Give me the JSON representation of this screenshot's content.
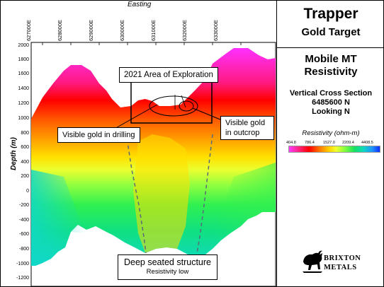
{
  "axes": {
    "x_title": "Easting",
    "y_title": "Depth (m)",
    "x_ticks": [
      "627000E",
      "628000E",
      "629000E",
      "630000E",
      "631000E",
      "632000E",
      "633000E"
    ],
    "y_ticks": [
      "2000",
      "1800",
      "1600",
      "1400",
      "1200",
      "1000",
      "800",
      "600",
      "400",
      "200",
      "0",
      "-200",
      "-400",
      "-600",
      "-800",
      "-1000",
      "-1200"
    ]
  },
  "callouts": {
    "exploration": "2021 Area of Exploration",
    "drilling": "Visible gold in drilling",
    "outcrop": "Visible gold in outcrop",
    "structure_main": "Deep seated structure",
    "structure_sub": "Resistivity low"
  },
  "panel": {
    "title": "Trapper",
    "subtitle": "Gold Target",
    "method_line1": "Mobile MT",
    "method_line2": "Resistivity",
    "section_line1": "Vertical Cross Section",
    "section_line2": "6485600  N",
    "section_line3": "Looking N"
  },
  "legend": {
    "title": "Resistivity (ohm-m)",
    "ticks": [
      "404.8",
      "786.4",
      "1527.0",
      "2209.4",
      "4408.5"
    ]
  },
  "logo": {
    "line1": "BRIXTON",
    "line2": "METALS"
  },
  "colors": {
    "very_high": "#ff3cff",
    "high": "#ff0000",
    "mid": "#ffd000",
    "low": "#20e060",
    "very_low": "#10d8c0"
  }
}
